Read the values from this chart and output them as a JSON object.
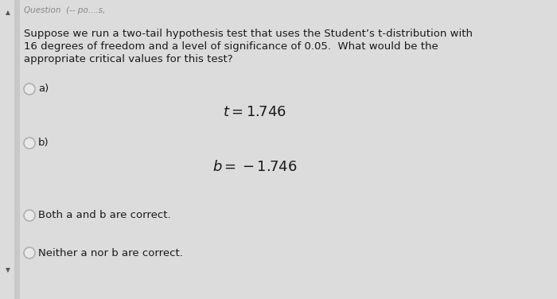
{
  "bg_color": "#dcdcdc",
  "main_bg": "#f2f2f2",
  "left_bar_color": "#c8c8c8",
  "question_text_line1": "Suppose we run a two-tail hypothesis test that uses the Student’s t-distribution with",
  "question_text_line2": "16 degrees of freedom and a level of significance of 0.05.  What would be the",
  "question_text_line3": "appropriate critical values for this test?",
  "option_a_label": "a)",
  "option_b_label": "b)",
  "formula_a": "$t = 1.746$",
  "formula_b": "$b = -1.746$",
  "option_c_label": "Both a and b are correct.",
  "option_d_label": "Neither a nor b are correct.",
  "header_partial": "Question  (-- po....s,",
  "text_color": "#1a1a1a",
  "radio_edge_color": "#b0b0b0",
  "radio_fill_color": "#e8e8e8",
  "formula_fontsize": 13,
  "question_fontsize": 9.5,
  "option_fontsize": 9.5,
  "header_fontsize": 7.5
}
